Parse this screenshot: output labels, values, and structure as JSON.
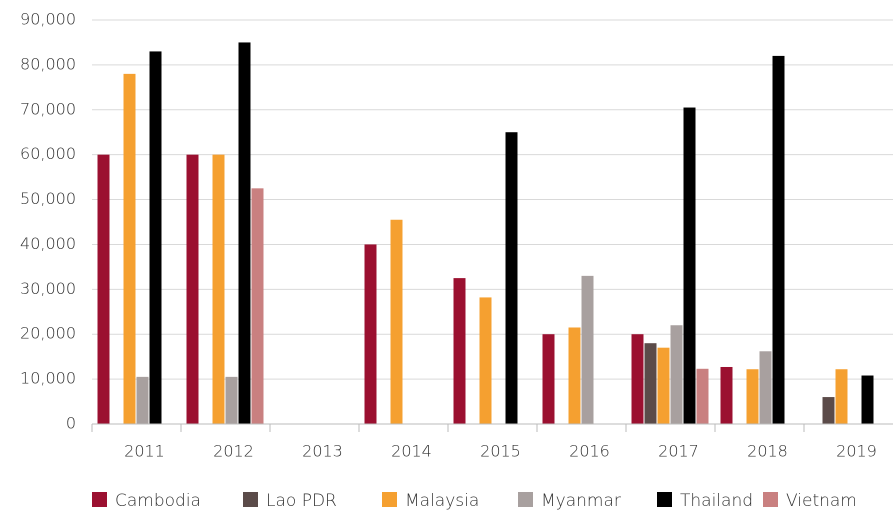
{
  "chart_data": {
    "type": "bar",
    "categories": [
      "2011",
      "2012",
      "2013",
      "2014",
      "2015",
      "2016",
      "2017",
      "2018",
      "2019"
    ],
    "series": [
      {
        "name": "Cambodia",
        "color": "#9b1030",
        "values": [
          60000,
          60000,
          0,
          40000,
          32500,
          20000,
          20000,
          12700,
          0
        ]
      },
      {
        "name": "Lao PDR",
        "color": "#5b4b49",
        "values": [
          0,
          0,
          0,
          0,
          0,
          0,
          18000,
          0,
          6000
        ]
      },
      {
        "name": "Malaysia",
        "color": "#f5a030",
        "values": [
          78000,
          60000,
          0,
          45500,
          28200,
          21500,
          17000,
          12200,
          12200
        ]
      },
      {
        "name": "Myanmar",
        "color": "#a8a09f",
        "values": [
          10500,
          10500,
          0,
          0,
          0,
          33000,
          22000,
          16200,
          0
        ]
      },
      {
        "name": "Thailand",
        "color": "#000000",
        "values": [
          83000,
          85000,
          0,
          0,
          65000,
          0,
          70500,
          82000,
          10800
        ]
      },
      {
        "name": "Vietnam",
        "color": "#c98080",
        "values": [
          0,
          52500,
          0,
          0,
          0,
          0,
          12300,
          0,
          0
        ]
      }
    ],
    "ylim": [
      0,
      90000
    ],
    "yticks": [
      0,
      {
        "value": 10000,
        "label": "10,000"
      },
      {
        "value": 20000,
        "label": "20,000"
      },
      {
        "value": 30000,
        "label": "30,000"
      },
      {
        "value": 40000,
        "label": "40,000"
      },
      {
        "value": 50000,
        "label": "50,000"
      },
      {
        "value": 60000,
        "label": "60,000"
      },
      {
        "value": 70000,
        "label": "70,000"
      },
      {
        "value": 80000,
        "label": "80,000"
      },
      {
        "value": 90000,
        "label": "90,000"
      }
    ],
    "grid": true,
    "legend": "bottom"
  }
}
